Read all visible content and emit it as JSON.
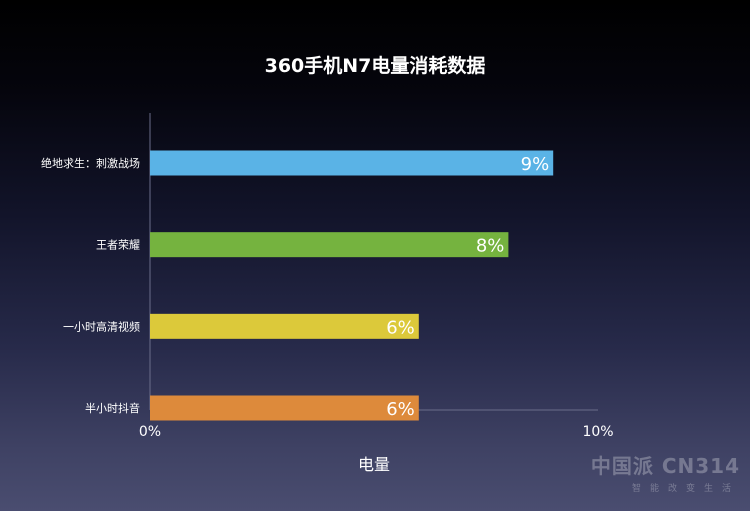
{
  "chart_data": {
    "type": "bar",
    "orientation": "horizontal",
    "title": "360手机N7电量消耗数据",
    "categories": [
      "绝地求生：刺激战场",
      "王者荣耀",
      "一小时高清视频",
      "半小时抖音"
    ],
    "values": [
      9,
      8,
      6,
      6
    ],
    "value_labels": [
      "9%",
      "8%",
      "6%",
      "6%"
    ],
    "colors": [
      "#5ab3e6",
      "#75b33f",
      "#dcc93a",
      "#dd8a3b"
    ],
    "xlabel": "电量",
    "xlim": [
      0,
      10
    ],
    "xticks": [
      0,
      10
    ],
    "xtick_labels": [
      "0%",
      "10%"
    ],
    "grid": false
  },
  "watermark": {
    "main": "中国派 CN314",
    "sub": "智能改变生活"
  }
}
